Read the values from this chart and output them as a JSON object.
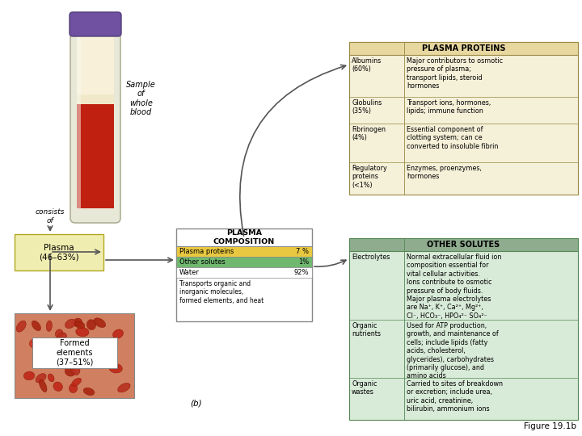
{
  "bg_color": "#ffffff",
  "plasma_proteins_header": "PLASMA PROTEINS",
  "plasma_proteins_header_bg": "#e8d8a0",
  "plasma_proteins_rows": [
    [
      "Albumins\n(60%)",
      "Major contributors to osmotic\npressure of plasma;\ntransport lipids, steroid\nhormones"
    ],
    [
      "Globulins\n(35%)",
      "Transport ions, hormones,\nlipids; immune function"
    ],
    [
      "Fibrinogen\n(4%)",
      "Essential component of\nclotting system; can ce\nconverted to insoluble fibrin"
    ],
    [
      "Regulatory\nproteins\n(<1%)",
      "Enzymes, proenzymes,\nhormones"
    ]
  ],
  "plasma_proteins_bg": "#f5f0d8",
  "other_solutes_header": "OTHER SOLUTES",
  "other_solutes_header_bg": "#8fac8f",
  "other_solutes_rows": [
    [
      "Electrolytes",
      "Normal extracellular fluid ion\ncomposition essential for\nvital cellular activities.\nIons contribute to osmotic\npressure of body fluids.\nMajor plasma electrolytes\nare Na⁺, K⁺, Ca²⁺, Mg²⁺,\nCl⁻, HCO₃⁻, HPO₄²⁻ SO₄²⁻"
    ],
    [
      "Organic\nnutrients",
      "Used for ATP production,\ngrowth, and maintenance of\ncells; include lipids (fatty\nacids, cholesterol,\nglycerides), carbohydrates\n(primarily glucose), and\namino acids"
    ],
    [
      "Organic\nwastes",
      "Carried to sites of breakdown\nor excretion; include urea,\nuric acid, creatinine,\nbilirubin, ammonium ions"
    ]
  ],
  "other_solutes_bg": "#d8ead8",
  "plasma_comp_header": "PLASMA\nCOMPOSITION",
  "plasma_comp_rows": [
    [
      "Plasma proteins",
      "7 %",
      "#e8c840"
    ],
    [
      "Other solutes",
      "1%",
      "#70b870"
    ],
    [
      "Water",
      "92%",
      "#ffffff"
    ]
  ],
  "plasma_comp_note": "Transports organic and\ninorganic molecules,\nformed elements, and heat",
  "plasma_label": "Plasma\n(46–63%)",
  "plasma_box_bg": "#f0edb0",
  "plasma_box_border": "#b0a820",
  "formed_label": "Formed\nelements\n(37–51%)",
  "sample_label": "Sample\nof\nwhole\nblood",
  "consists_of_label": "consists\nof",
  "figure_label": "Figure 19.1b"
}
